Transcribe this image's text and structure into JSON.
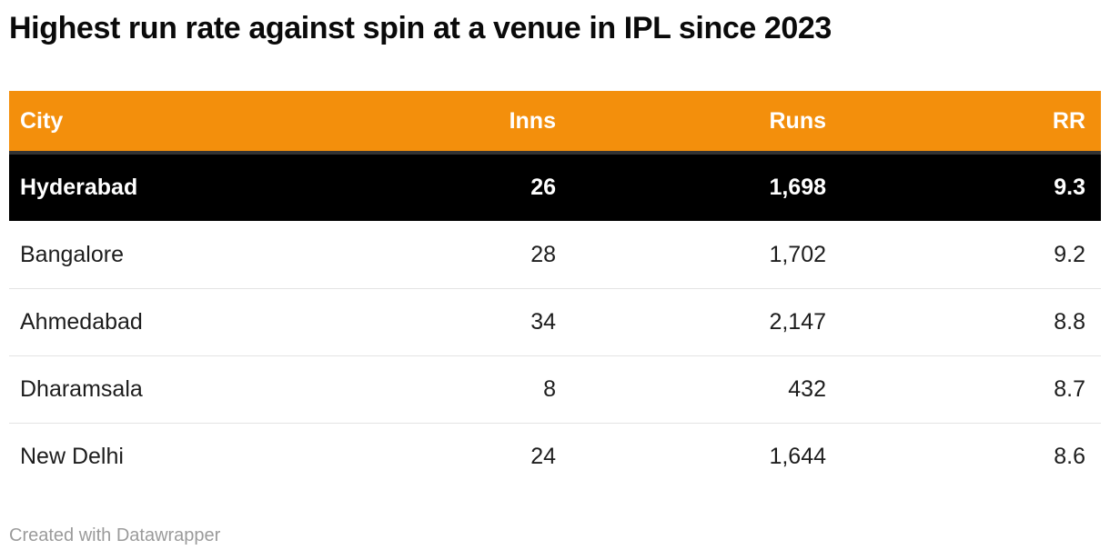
{
  "title": "Highest run rate against spin at a venue in IPL since 2023",
  "table": {
    "columns": [
      {
        "key": "city",
        "label": "City",
        "align": "left"
      },
      {
        "key": "inns",
        "label": "Inns",
        "align": "right"
      },
      {
        "key": "runs",
        "label": "Runs",
        "align": "right"
      },
      {
        "key": "rr",
        "label": "RR",
        "align": "right"
      }
    ],
    "rows": [
      {
        "city": "Hyderabad",
        "inns": "26",
        "runs": "1,698",
        "rr": "9.3",
        "highlight": true
      },
      {
        "city": "Bangalore",
        "inns": "28",
        "runs": "1,702",
        "rr": "9.2",
        "highlight": false
      },
      {
        "city": "Ahmedabad",
        "inns": "34",
        "runs": "2,147",
        "rr": "8.8",
        "highlight": false
      },
      {
        "city": "Dharamsala",
        "inns": "8",
        "runs": "432",
        "rr": "8.7",
        "highlight": false
      },
      {
        "city": "New Delhi",
        "inns": "24",
        "runs": "1,644",
        "rr": "8.6",
        "highlight": false
      }
    ]
  },
  "footer": {
    "credit": "Created with Datawrapper"
  },
  "colors": {
    "header_bg": "#F38F0C",
    "header_text": "#FFFFFF",
    "header_border": "#333333",
    "highlight_bg": "#000000",
    "highlight_text": "#FFFFFF",
    "body_text": "#1D1D1D",
    "row_divider": "#E3E3E3",
    "footer_text": "#9B9B9B",
    "page_bg": "#FFFFFF"
  },
  "chart_data": {
    "type": "table",
    "title": "Highest run rate against spin at a venue in IPL since 2023",
    "columns": [
      "City",
      "Inns",
      "Runs",
      "RR"
    ],
    "rows": [
      [
        "Hyderabad",
        26,
        1698,
        9.3
      ],
      [
        "Bangalore",
        28,
        1702,
        9.2
      ],
      [
        "Ahmedabad",
        34,
        2147,
        8.8
      ],
      [
        "Dharamsala",
        8,
        432,
        8.7
      ],
      [
        "New Delhi",
        24,
        1644,
        8.6
      ]
    ],
    "highlighted_row": "Hyderabad",
    "legend_position": "none",
    "grid": "horizontal-dividers"
  }
}
